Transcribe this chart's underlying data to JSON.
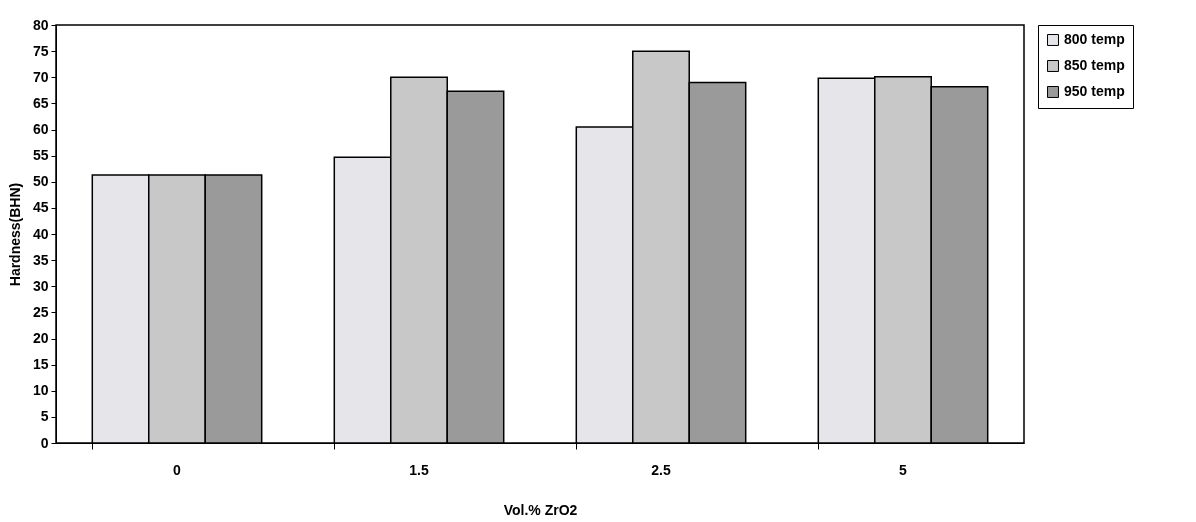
{
  "chart_data": {
    "type": "bar",
    "xlabel": "Vol.% ZrO2",
    "ylabel": "Hardness(BHN)",
    "categories": [
      "0",
      "1.5",
      "2.5",
      "5"
    ],
    "series": [
      {
        "name": "800 temp",
        "color": "#e6e6ea",
        "values": [
          51.3,
          54.7,
          60.5,
          69.8
        ]
      },
      {
        "name": "850 temp",
        "color": "#c8c8c8",
        "values": [
          51.3,
          70,
          75,
          70.1
        ]
      },
      {
        "name": "950 temp",
        "color": "#9a9a9a",
        "values": [
          51.3,
          67.3,
          69,
          68.2
        ]
      }
    ],
    "ylim": [
      0,
      80
    ],
    "yticks": [
      0,
      5,
      10,
      15,
      20,
      25,
      30,
      35,
      40,
      45,
      50,
      55,
      60,
      65,
      70,
      75,
      80
    ],
    "grid": false,
    "legend": "right"
  }
}
